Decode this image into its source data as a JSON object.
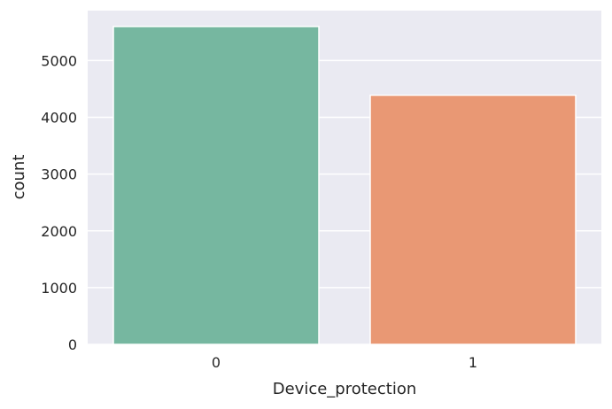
{
  "chart_data": {
    "type": "bar",
    "categories": [
      "0",
      "1"
    ],
    "values": [
      5600,
      4390
    ],
    "xlabel": "Device_protection",
    "ylabel": "count",
    "ylim": [
      0,
      5880
    ],
    "yticks": [
      0,
      1000,
      2000,
      3000,
      4000,
      5000
    ],
    "yticks_text": [
      "0",
      "1000",
      "2000",
      "3000",
      "4000",
      "5000"
    ],
    "grid": true,
    "legend": "none",
    "colors": {
      "background": "#EAEAF2",
      "grid": "#FFFFFF",
      "bars": [
        "#76B7A0",
        "#E99874"
      ]
    }
  }
}
